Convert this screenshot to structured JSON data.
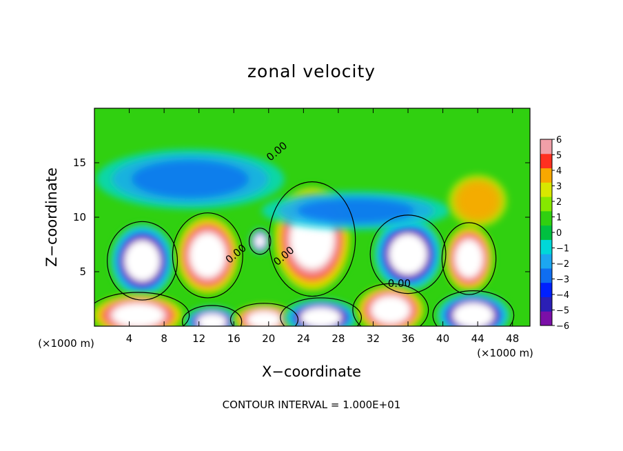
{
  "chart_data": {
    "type": "heatmap",
    "title": "zonal velocity",
    "xlabel": "X−coordinate",
    "ylabel": "Z−coordinate",
    "x_unit_left": "(×1000 m)",
    "x_unit_right": "(×1000 m)",
    "footer": "CONTOUR INTERVAL = 1.000E+01",
    "xlim": [
      0,
      50
    ],
    "ylim": [
      0,
      20
    ],
    "x_ticks": [
      4,
      8,
      12,
      16,
      20,
      24,
      28,
      32,
      36,
      40,
      44,
      48
    ],
    "x_tick_labels": [
      "4",
      "8",
      "12",
      "16",
      "20",
      "24",
      "28",
      "32",
      "36",
      "40",
      "44",
      "48"
    ],
    "y_ticks": [
      5,
      10,
      15
    ],
    "y_tick_labels": [
      "5",
      "10",
      "15"
    ],
    "colorbar": {
      "min": -6,
      "max": 6,
      "tick_labels": [
        "6",
        "5",
        "4",
        "3",
        "2",
        "1",
        "0",
        "−1",
        "−2",
        "−3",
        "−4",
        "−5",
        "−6"
      ],
      "colors": [
        "#7b0fa8",
        "#2b1fb5",
        "#0020ff",
        "#0f6ef0",
        "#1ca6f0",
        "#00d8d8",
        "#00c040",
        "#30d010",
        "#86e800",
        "#d8e800",
        "#f8a800",
        "#ff3020",
        "#f0a0a8"
      ]
    },
    "contour_labels": [
      "0.00",
      "0.00",
      "0.00",
      "0.00"
    ],
    "cells": [
      {
        "x": 5.5,
        "z": 6.0,
        "rx": 2.6,
        "rz": 2.4,
        "v": -6
      },
      {
        "x": 13.0,
        "z": 6.5,
        "rx": 2.6,
        "rz": 2.6,
        "v": 6
      },
      {
        "x": 25.0,
        "z": 8.0,
        "rx": 3.2,
        "rz": 3.5,
        "v": 6
      },
      {
        "x": 36.0,
        "z": 6.6,
        "rx": 2.8,
        "rz": 2.4,
        "v": -6
      },
      {
        "x": 43.0,
        "z": 6.2,
        "rx": 2.0,
        "rz": 2.2,
        "v": 6
      },
      {
        "x": 19.0,
        "z": 7.8,
        "rx": 0.8,
        "rz": 0.8,
        "v": -6
      },
      {
        "x": 5.0,
        "z": 1.0,
        "rx": 3.8,
        "rz": 1.4,
        "v": 6
      },
      {
        "x": 13.5,
        "z": 0.4,
        "rx": 2.2,
        "rz": 1.0,
        "v": -6
      },
      {
        "x": 19.5,
        "z": 0.6,
        "rx": 2.5,
        "rz": 1.0,
        "v": 6
      },
      {
        "x": 26.0,
        "z": 0.8,
        "rx": 3.0,
        "rz": 1.2,
        "v": -6
      },
      {
        "x": 34.0,
        "z": 1.5,
        "rx": 2.8,
        "rz": 1.6,
        "v": 6
      },
      {
        "x": 43.5,
        "z": 1.0,
        "rx": 3.0,
        "rz": 1.5,
        "v": -6
      },
      {
        "x": 11.0,
        "z": 13.5,
        "rx": 9.0,
        "rz": 2.3,
        "v": -3
      },
      {
        "x": 30.0,
        "z": 10.6,
        "rx": 9.0,
        "rz": 1.5,
        "v": -3
      },
      {
        "x": 44.0,
        "z": 11.5,
        "rx": 2.8,
        "rz": 2.0,
        "v": 3
      }
    ]
  }
}
